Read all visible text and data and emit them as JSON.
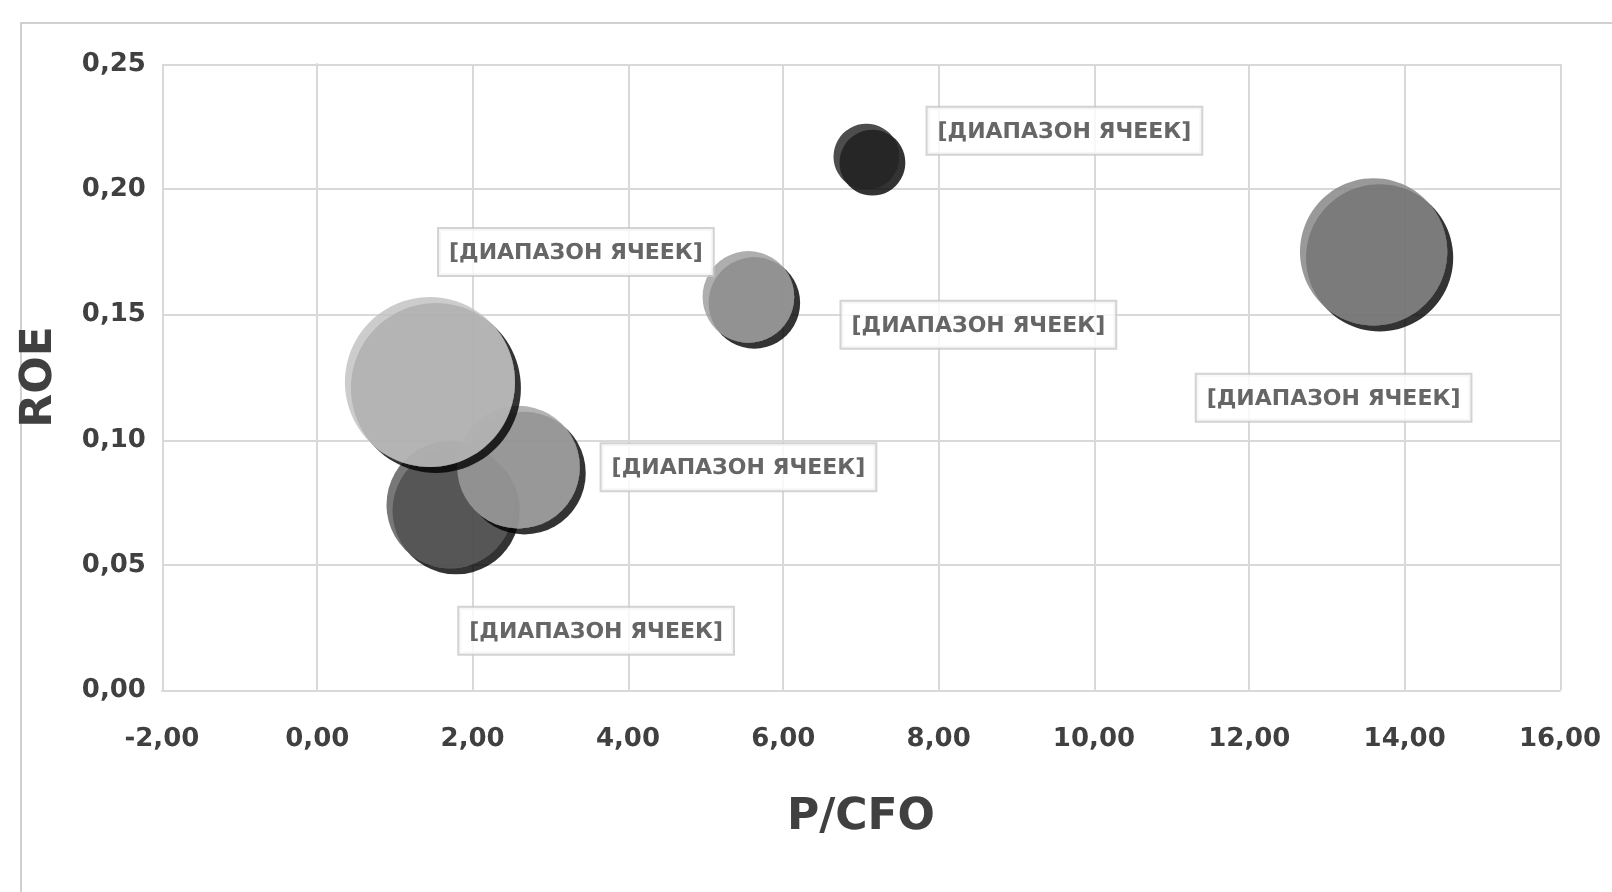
{
  "chart_data": {
    "type": "bubble",
    "xlabel": "P/CFO",
    "ylabel": "ROE",
    "x": [
      1.71,
      2.59,
      1.45,
      5.55,
      7.07,
      13.6
    ],
    "values": [
      0.074,
      0.089,
      0.123,
      0.157,
      0.213,
      0.175
    ],
    "sizes": [
      0.56,
      0.52,
      1,
      0.29,
      0.15,
      0.75
    ],
    "colors": [
      "#555555",
      "#a0a0a0",
      "#bfbfbf",
      "#9a9a9a",
      "#1e1e1e",
      "#7f7f7f"
    ],
    "xlim": [
      -2,
      16
    ],
    "xticks": [
      {
        "value": -2,
        "label": "-2,00"
      },
      {
        "value": 0,
        "label": "0,00"
      },
      {
        "value": 2,
        "label": "2,00"
      },
      {
        "value": 4,
        "label": "4,00"
      },
      {
        "value": 6,
        "label": "6,00"
      },
      {
        "value": 8,
        "label": "8,00"
      },
      {
        "value": 10,
        "label": "10,00"
      },
      {
        "value": 12,
        "label": "12,00"
      },
      {
        "value": 14,
        "label": "14,00"
      },
      {
        "value": 16,
        "label": "16,00"
      }
    ],
    "ylim": [
      0,
      0.25
    ],
    "yticks": [
      {
        "value": 0,
        "label": "0,00"
      },
      {
        "value": 0.05,
        "label": "0,05"
      },
      {
        "value": 0.1,
        "label": "0,10"
      },
      {
        "value": 0.15,
        "label": "0,15"
      },
      {
        "value": 0.2,
        "label": "0,20"
      },
      {
        "value": 0.25,
        "label": "0,25"
      }
    ],
    "grid": true,
    "annotations": [
      "[ДИАПАЗОН ЯЧЕЕК]",
      "[ДИАПАЗОН ЯЧЕЕК]",
      "[ДИАПАЗОН ЯЧЕЕК]",
      "[ДИАПАЗОН ЯЧЕЕК]",
      "[ДИАПАЗОН ЯЧЕЕК]",
      "[ДИАПАЗОН ЯЧЕЕК]"
    ]
  }
}
